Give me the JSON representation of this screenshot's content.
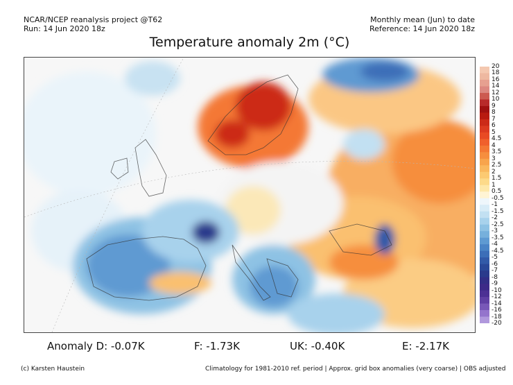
{
  "header": {
    "left_line1": "NCAR/NCEP reanalysis project @T62",
    "left_line2": "Run: 14 Jun 2020 18z",
    "right_line1": "Monthly mean (Jun) to date",
    "right_line2": "Reference: 14 Jun 2020 18z"
  },
  "title": "Temperature anomaly 2m (°C)",
  "colorbar": {
    "levels": [
      "20",
      "18",
      "16",
      "14",
      "12",
      "10",
      "9",
      "8",
      "7",
      "6",
      "5",
      "4.5",
      "4",
      "3.5",
      "3",
      "2.5",
      "2",
      "1.5",
      "1",
      "0.5",
      "-0.5",
      "-1",
      "-1.5",
      "-2",
      "-2.5",
      "-3",
      "-3.5",
      "-4",
      "-4.5",
      "-5",
      "-6",
      "-7",
      "-8",
      "-9",
      "-10",
      "-12",
      "-14",
      "-16",
      "-18",
      "-20"
    ],
    "colors": [
      "#f4c8b0",
      "#eeb8a0",
      "#e6a090",
      "#dc8880",
      "#cc5a50",
      "#b82a2a",
      "#a01010",
      "#b81a10",
      "#cc2a18",
      "#dc3a20",
      "#e84a24",
      "#f0602c",
      "#f47834",
      "#f68e3e",
      "#f8a44c",
      "#fab85e",
      "#fcca72",
      "#fdda8a",
      "#fee8aa",
      "#fff4d4",
      "#eef6fb",
      "#d8ecf7",
      "#c2e0f2",
      "#a8d2ec",
      "#8ec2e4",
      "#76b0dc",
      "#5e9ad2",
      "#4a84c6",
      "#3c6eb8",
      "#325aa8",
      "#2a4898",
      "#2a3a8c",
      "#322e86",
      "#3c2a88",
      "#4c3094",
      "#6040a4",
      "#7858b8",
      "#9474cc",
      "#b098dc",
      "#ccbcea"
    ]
  },
  "anomalies": {
    "d": "Anomaly D: -0.07K",
    "f": "F: -1.73K",
    "uk": "UK: -0.40K",
    "e": "E: -2.17K"
  },
  "footer": {
    "credit": "(c) Karsten Haustein",
    "note": "Climatology for 1981-2010 ref. period | Approx. grid box anomalies (very coarse) | OBS adjusted"
  }
}
